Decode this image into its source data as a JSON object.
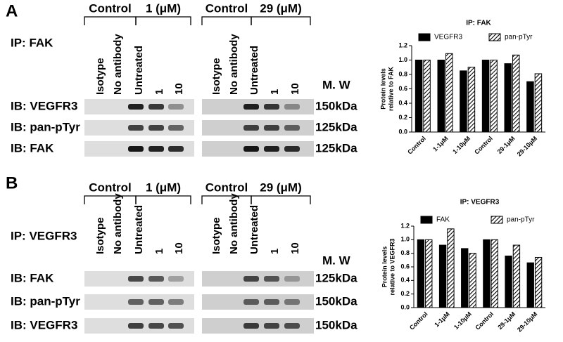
{
  "panels": [
    {
      "label": "A",
      "ip": "IP: FAK",
      "groups": [
        "Control",
        "1 (μM)",
        "Control",
        "29 (μM)"
      ],
      "lanes": [
        "Isotype",
        "No antibody",
        "Untreated",
        "1",
        "10",
        "Isotype",
        "No antibody",
        "Untreated",
        "1",
        "10"
      ],
      "mw_header": "M. W",
      "blots": [
        {
          "label": "IB: VEGFR3",
          "mw": "150kDa"
        },
        {
          "label": "IB: pan-pTyr",
          "mw": "125kDa"
        },
        {
          "label": "IB: FAK",
          "mw": "125kDa"
        }
      ]
    },
    {
      "label": "B",
      "ip": "IP: VEGFR3",
      "groups": [
        "Control",
        "1 (μM)",
        "Control",
        "29 (μM)"
      ],
      "lanes": [
        "Isotype",
        "No antibody",
        "Untreated",
        "1",
        "10",
        "Isotype",
        "No antibody",
        "Untreated",
        "1",
        "10"
      ],
      "mw_header": "M. W",
      "blots": [
        {
          "label": "IB: FAK",
          "mw": "125kDa"
        },
        {
          "label": "IB: pan-pTyr",
          "mw": "150kDa"
        },
        {
          "label": "IB: VEGFR3",
          "mw": "150kDa"
        }
      ]
    }
  ],
  "chart_data": [
    {
      "type": "bar",
      "title": "IP: FAK",
      "ylabel": [
        "Protein levels",
        "relative to FAK"
      ],
      "categories": [
        "Control",
        "1-1μM",
        "1-10μM",
        "Control",
        "29-1μM",
        "29-10μM"
      ],
      "series": [
        {
          "name": "VEGFR3",
          "color": "#000000",
          "pattern": "solid",
          "values": [
            1.0,
            1.0,
            0.85,
            1.0,
            0.95,
            0.7
          ]
        },
        {
          "name": "pan-pTyr",
          "color": "#000000",
          "pattern": "hatch",
          "values": [
            1.0,
            1.09,
            0.9,
            1.0,
            1.07,
            0.81
          ]
        }
      ],
      "ylim": [
        0,
        1.2
      ],
      "yticks": [
        {
          "value": 0,
          "label": "0.0"
        },
        0.2,
        0.4,
        0.6,
        0.8,
        {
          "value": 1,
          "label": "1.0"
        },
        1.2
      ]
    },
    {
      "type": "bar",
      "title": "IP: VEGFR3",
      "ylabel": [
        "Protein levels",
        "relative to VEGFR3"
      ],
      "categories": [
        "Control",
        "1-1μM",
        "1-10μM",
        "Control",
        "29-1μM",
        "29-10μM"
      ],
      "series": [
        {
          "name": "FAK",
          "color": "#000000",
          "pattern": "solid",
          "values": [
            1.0,
            0.92,
            0.87,
            1.0,
            0.76,
            0.66
          ]
        },
        {
          "name": "pan-pTyr",
          "color": "#000000",
          "pattern": "hatch",
          "values": [
            1.0,
            1.16,
            0.8,
            1.0,
            0.92,
            0.74
          ]
        }
      ],
      "ylim": [
        0,
        1.2
      ],
      "yticks": [
        {
          "value": 0,
          "label": "0.0"
        },
        0.2,
        0.4,
        0.6,
        0.8,
        {
          "value": 1,
          "label": "1.0"
        },
        1.2
      ]
    }
  ]
}
